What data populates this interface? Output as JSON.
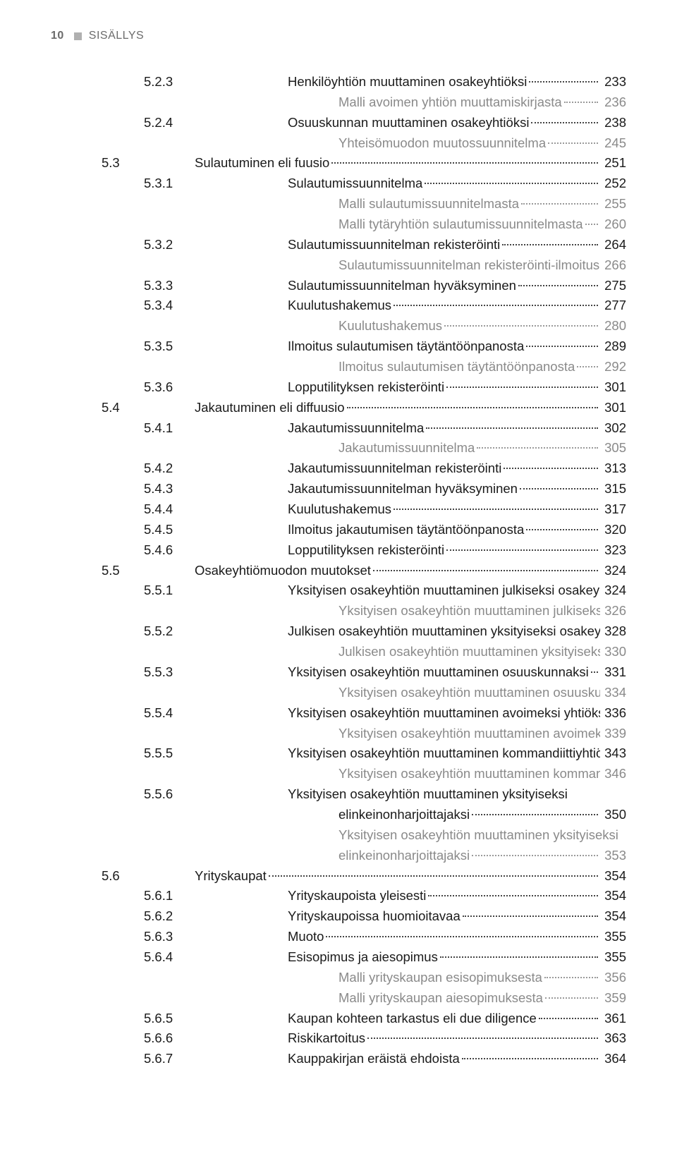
{
  "colors": {
    "text": "#1a1a1a",
    "gray_text": "#8a8a8a",
    "header_gray": "#6b6b6b",
    "square": "#b0b0b0",
    "leader": "#444444",
    "leader_gray": "#9a9a9a",
    "background": "#ffffff"
  },
  "typography": {
    "body_fontsize_pt": 14,
    "header_fontsize_pt": 12,
    "font_family": "Arial (sans-serif, condensed look)"
  },
  "header": {
    "page_number": "10",
    "section_label": "SISÄLLYS"
  },
  "entries": [
    {
      "level": 3,
      "num": "5.2.3",
      "title": "Henkilöyhtiön muuttaminen osakeyhtiöksi",
      "page": "233",
      "gray": false
    },
    {
      "level": 3,
      "num": "",
      "title": "Malli avoimen yhtiön muuttamiskirjasta",
      "page": "236",
      "gray": true,
      "noid": true
    },
    {
      "level": 3,
      "num": "5.2.4",
      "title": "Osuuskunnan muuttaminen osakeyhtiöksi",
      "page": "238",
      "gray": false
    },
    {
      "level": 3,
      "num": "",
      "title": "Yhteisömuodon muutossuunnitelma",
      "page": "245",
      "gray": true,
      "noid": true
    },
    {
      "level": 2,
      "num": "5.3",
      "title": "Sulautuminen eli fuusio",
      "page": "251",
      "gray": false
    },
    {
      "level": 3,
      "num": "5.3.1",
      "title": "Sulautumissuunnitelma",
      "page": "252",
      "gray": false
    },
    {
      "level": 3,
      "num": "",
      "title": "Malli sulautumissuunnitelmasta",
      "page": "255",
      "gray": true,
      "noid": true
    },
    {
      "level": 3,
      "num": "",
      "title": "Malli tytäryhtiön sulautumissuunnitelmasta",
      "page": "260",
      "gray": true,
      "noid": true
    },
    {
      "level": 3,
      "num": "5.3.2",
      "title": "Sulautumissuunnitelman rekisteröinti",
      "page": "264",
      "gray": false
    },
    {
      "level": 3,
      "num": "",
      "title": "Sulautumissuunnitelman rekisteröinti-ilmoitus",
      "page": "266",
      "gray": true,
      "noid": true
    },
    {
      "level": 3,
      "num": "5.3.3",
      "title": "Sulautumissuunnitelman hyväksyminen",
      "page": "275",
      "gray": false
    },
    {
      "level": 3,
      "num": "5.3.4",
      "title": "Kuulutushakemus",
      "page": "277",
      "gray": false
    },
    {
      "level": 3,
      "num": "",
      "title": "Kuulutushakemus",
      "page": "280",
      "gray": true,
      "noid": true
    },
    {
      "level": 3,
      "num": "5.3.5",
      "title": "Ilmoitus sulautumisen täytäntöönpanosta",
      "page": "289",
      "gray": false
    },
    {
      "level": 3,
      "num": "",
      "title": "Ilmoitus sulautumisen täytäntöönpanosta",
      "page": "292",
      "gray": true,
      "noid": true
    },
    {
      "level": 3,
      "num": "5.3.6",
      "title": "Lopputilityksen rekisteröinti",
      "page": "301",
      "gray": false
    },
    {
      "level": 2,
      "num": "5.4",
      "title": "Jakautuminen eli diffuusio",
      "page": "301",
      "gray": false
    },
    {
      "level": 3,
      "num": "5.4.1",
      "title": "Jakautumissuunnitelma",
      "page": "302",
      "gray": false
    },
    {
      "level": 3,
      "num": "",
      "title": "Jakautumissuunnitelma",
      "page": "305",
      "gray": true,
      "noid": true
    },
    {
      "level": 3,
      "num": "5.4.2",
      "title": "Jakautumissuunnitelman rekisteröinti",
      "page": "313",
      "gray": false
    },
    {
      "level": 3,
      "num": "5.4.3",
      "title": "Jakautumissuunnitelman hyväksyminen",
      "page": "315",
      "gray": false
    },
    {
      "level": 3,
      "num": "5.4.4",
      "title": "Kuulutushakemus",
      "page": "317",
      "gray": false
    },
    {
      "level": 3,
      "num": "5.4.5",
      "title": "Ilmoitus jakautumisen täytäntöönpanosta",
      "page": "320",
      "gray": false
    },
    {
      "level": 3,
      "num": "5.4.6",
      "title": "Lopputilityksen rekisteröinti",
      "page": "323",
      "gray": false
    },
    {
      "level": 2,
      "num": "5.5",
      "title": "Osakeyhtiömuodon muutokset",
      "page": "324",
      "gray": false
    },
    {
      "level": 3,
      "num": "5.5.1",
      "title": "Yksityisen osakeyhtiön muuttaminen julkiseksi osakeyhtiöksi",
      "page": "324",
      "gray": false
    },
    {
      "level": 3,
      "num": "",
      "title": "Yksityisen osakeyhtiön muuttaminen julkiseksi osakeyhtiöksi",
      "page": "326",
      "gray": true,
      "noid": true
    },
    {
      "level": 3,
      "num": "5.5.2",
      "title": "Julkisen osakeyhtiön muuttaminen yksityiseksi osakeyhtiöksi",
      "page": "328",
      "gray": false
    },
    {
      "level": 3,
      "num": "",
      "title": "Julkisen osakeyhtiön muuttaminen yksityiseksi osakeyhtiöksi",
      "page": "330",
      "gray": true,
      "noid": true
    },
    {
      "level": 3,
      "num": "5.5.3",
      "title": "Yksityisen osakeyhtiön muuttaminen osuuskunnaksi",
      "page": "331",
      "gray": false
    },
    {
      "level": 3,
      "num": "",
      "title": "Yksityisen osakeyhtiön muuttaminen osuuskunnaksi",
      "page": "334",
      "gray": true,
      "noid": true
    },
    {
      "level": 3,
      "num": "5.5.4",
      "title": "Yksityisen osakeyhtiön muuttaminen avoimeksi yhtiöksi",
      "page": "336",
      "gray": false
    },
    {
      "level": 3,
      "num": "",
      "title": "Yksityisen osakeyhtiön muuttaminen avoimeksi yhtiöksi",
      "page": "339",
      "gray": true,
      "noid": true
    },
    {
      "level": 3,
      "num": "5.5.5",
      "title": "Yksityisen osakeyhtiön muuttaminen kommandiittiyhtiöksi",
      "page": "343",
      "gray": false
    },
    {
      "level": 3,
      "num": "",
      "title": "Yksityisen osakeyhtiön muuttaminen kommandiittiyhtiöksi",
      "page": "346",
      "gray": true,
      "noid": true
    },
    {
      "level": 3,
      "num": "5.5.6",
      "title": "Yksityisen osakeyhtiön muuttaminen yksityiseksi",
      "title2": "elinkeinonharjoittajaksi",
      "page": "350",
      "gray": false,
      "wrap": true
    },
    {
      "level": 3,
      "num": "",
      "title": "Yksityisen osakeyhtiön muuttaminen yksityiseksi",
      "title2": "elinkeinonharjoittajaksi",
      "page": "353",
      "gray": true,
      "noid": true,
      "wrap": true
    },
    {
      "level": 2,
      "num": "5.6",
      "title": "Yrityskaupat",
      "page": "354",
      "gray": false
    },
    {
      "level": 3,
      "num": "5.6.1",
      "title": "Yrityskaupoista yleisesti",
      "page": "354",
      "gray": false
    },
    {
      "level": 3,
      "num": "5.6.2",
      "title": "Yrityskaupoissa huomioitavaa",
      "page": "354",
      "gray": false
    },
    {
      "level": 3,
      "num": "5.6.3",
      "title": "Muoto",
      "page": "355",
      "gray": false
    },
    {
      "level": 3,
      "num": "5.6.4",
      "title": "Esisopimus ja aiesopimus",
      "page": "355",
      "gray": false
    },
    {
      "level": 3,
      "num": "",
      "title": "Malli yrityskaupan esisopimuksesta",
      "page": "356",
      "gray": true,
      "noid": true
    },
    {
      "level": 3,
      "num": "",
      "title": "Malli yrityskaupan aiesopimuksesta",
      "page": "359",
      "gray": true,
      "noid": true
    },
    {
      "level": 3,
      "num": "5.6.5",
      "title": "Kaupan kohteen tarkastus eli due diligence",
      "page": "361",
      "gray": false
    },
    {
      "level": 3,
      "num": "5.6.6",
      "title": "Riskikartoitus",
      "page": "363",
      "gray": false
    },
    {
      "level": 3,
      "num": "5.6.7",
      "title": "Kauppakirjan eräistä ehdoista",
      "page": "364",
      "gray": false
    }
  ]
}
